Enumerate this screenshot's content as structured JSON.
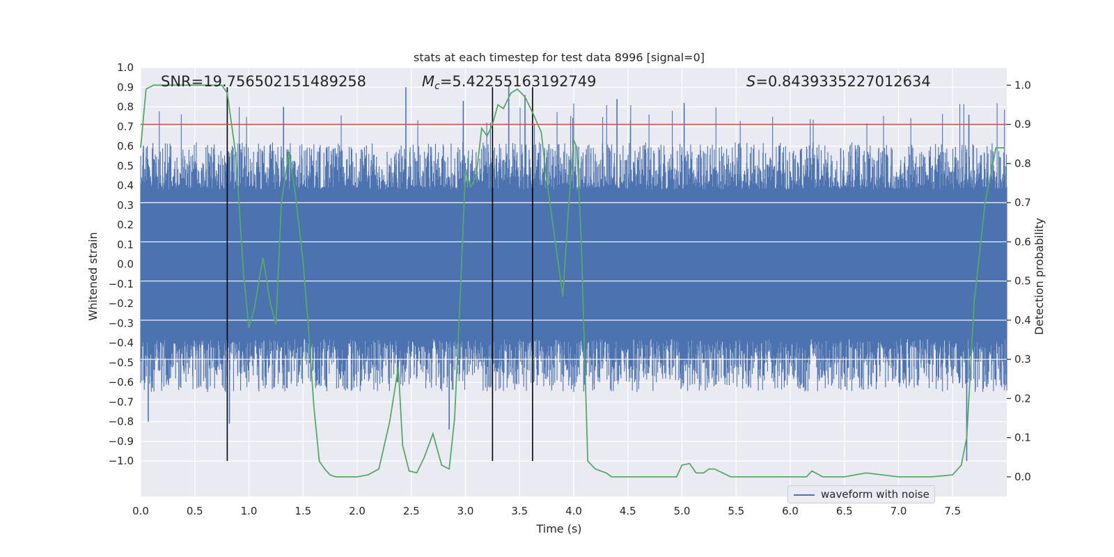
{
  "chart_data": {
    "type": "line",
    "title": "stats at each timestep for test data 8996 [signal=0]",
    "xlabel": "Time (s)",
    "ylabel_left": "Whitened strain",
    "ylabel_right": "Detection probability",
    "xlim": [
      0.0,
      8.0
    ],
    "ylim_left": [
      -1.18,
      1.0
    ],
    "ylim_right": [
      -0.05,
      1.045
    ],
    "x_ticks": [
      "0.0",
      "0.5",
      "1.0",
      "1.5",
      "2.0",
      "2.5",
      "3.0",
      "3.5",
      "4.0",
      "4.5",
      "5.0",
      "5.5",
      "6.0",
      "6.5",
      "7.0",
      "7.5"
    ],
    "y_ticks_left": [
      "1.0",
      "0.9",
      "0.8",
      "0.7",
      "0.6",
      "0.5",
      "0.4",
      "0.3",
      "0.2",
      "0.1",
      "0.0",
      "−0.1",
      "−0.2",
      "−0.3",
      "−0.4",
      "−0.5",
      "−0.6",
      "−0.7",
      "−0.8",
      "−0.9",
      "−1.0"
    ],
    "y_ticks_right": [
      "1.0",
      "0.9",
      "0.8",
      "0.7",
      "0.6",
      "0.5",
      "0.4",
      "0.3",
      "0.2",
      "0.1",
      "0.0"
    ],
    "annotations": {
      "snr": "SNR=19.756502151489258",
      "mc_symbol": "M",
      "mc_sub": "c",
      "mc_value": "=5.42255163192749",
      "s_symbol": "S",
      "s_value": "=0.8439335227012634"
    },
    "legend": {
      "label": "waveform with noise",
      "position": "lower-right"
    },
    "threshold_line": {
      "axis": "right",
      "value": 0.9,
      "color": "#c44e52"
    },
    "vertical_lines": [
      0.8,
      3.25,
      3.62
    ],
    "series": [
      {
        "name": "waveform with noise",
        "axis": "left",
        "color": "#4c72b0",
        "amplitude_range": [
          -1.0,
          0.9
        ],
        "spikes": [
          {
            "x": 0.07,
            "y": -0.8
          },
          {
            "x": 0.82,
            "y": -0.81
          },
          {
            "x": 1.32,
            "y": 0.8
          },
          {
            "x": 2.45,
            "y": 0.9
          },
          {
            "x": 2.85,
            "y": -0.84
          },
          {
            "x": 2.98,
            "y": 0.83
          },
          {
            "x": 3.4,
            "y": 0.91
          },
          {
            "x": 3.55,
            "y": 0.86
          },
          {
            "x": 4.4,
            "y": 0.84
          },
          {
            "x": 5.02,
            "y": 0.82
          },
          {
            "x": 7.63,
            "y": -1.0
          },
          {
            "x": 7.65,
            "y": 0.76
          }
        ]
      },
      {
        "name": "detection probability",
        "axis": "right",
        "color": "#55a868",
        "x": [
          0.0,
          0.05,
          0.12,
          0.2,
          0.3,
          0.4,
          0.5,
          0.6,
          0.7,
          0.75,
          0.8,
          0.88,
          0.95,
          1.0,
          1.05,
          1.13,
          1.2,
          1.25,
          1.3,
          1.37,
          1.43,
          1.5,
          1.55,
          1.6,
          1.65,
          1.7,
          1.75,
          1.8,
          1.85,
          1.9,
          2.0,
          2.1,
          2.2,
          2.3,
          2.38,
          2.42,
          2.48,
          2.55,
          2.62,
          2.7,
          2.78,
          2.85,
          2.9,
          2.95,
          3.0,
          3.05,
          3.1,
          3.15,
          3.2,
          3.25,
          3.3,
          3.35,
          3.42,
          3.48,
          3.55,
          3.62,
          3.7,
          3.75,
          3.8,
          3.9,
          3.95,
          4.0,
          4.03,
          4.07,
          4.13,
          4.2,
          4.3,
          4.35,
          4.5,
          4.8,
          4.95,
          5.0,
          5.07,
          5.13,
          5.2,
          5.25,
          5.3,
          5.45,
          6.0,
          6.15,
          6.2,
          6.3,
          6.5,
          6.7,
          7.0,
          7.3,
          7.5,
          7.58,
          7.63,
          7.7,
          7.8,
          7.9,
          7.98
        ],
        "values": [
          0.84,
          0.99,
          1.0,
          1.0,
          1.0,
          1.0,
          1.0,
          1.0,
          1.0,
          1.0,
          0.98,
          0.82,
          0.52,
          0.38,
          0.43,
          0.56,
          0.44,
          0.39,
          0.7,
          0.83,
          0.72,
          0.55,
          0.38,
          0.18,
          0.04,
          0.02,
          0.005,
          0.0,
          0.0,
          0.0,
          0.0,
          0.005,
          0.02,
          0.14,
          0.28,
          0.08,
          0.015,
          0.01,
          0.05,
          0.11,
          0.03,
          0.02,
          0.15,
          0.45,
          0.78,
          0.74,
          0.77,
          0.89,
          0.87,
          0.9,
          0.95,
          0.94,
          0.98,
          0.99,
          0.97,
          0.93,
          0.88,
          0.76,
          0.66,
          0.46,
          0.68,
          0.86,
          0.84,
          0.6,
          0.04,
          0.02,
          0.01,
          0.0,
          0.0,
          0.0,
          0.0,
          0.03,
          0.034,
          0.01,
          0.01,
          0.02,
          0.02,
          0.0,
          0.0,
          0.0,
          0.015,
          0.0,
          0.0,
          0.01,
          0.0,
          0.0,
          0.005,
          0.03,
          0.1,
          0.45,
          0.7,
          0.84,
          0.84
        ]
      }
    ]
  }
}
